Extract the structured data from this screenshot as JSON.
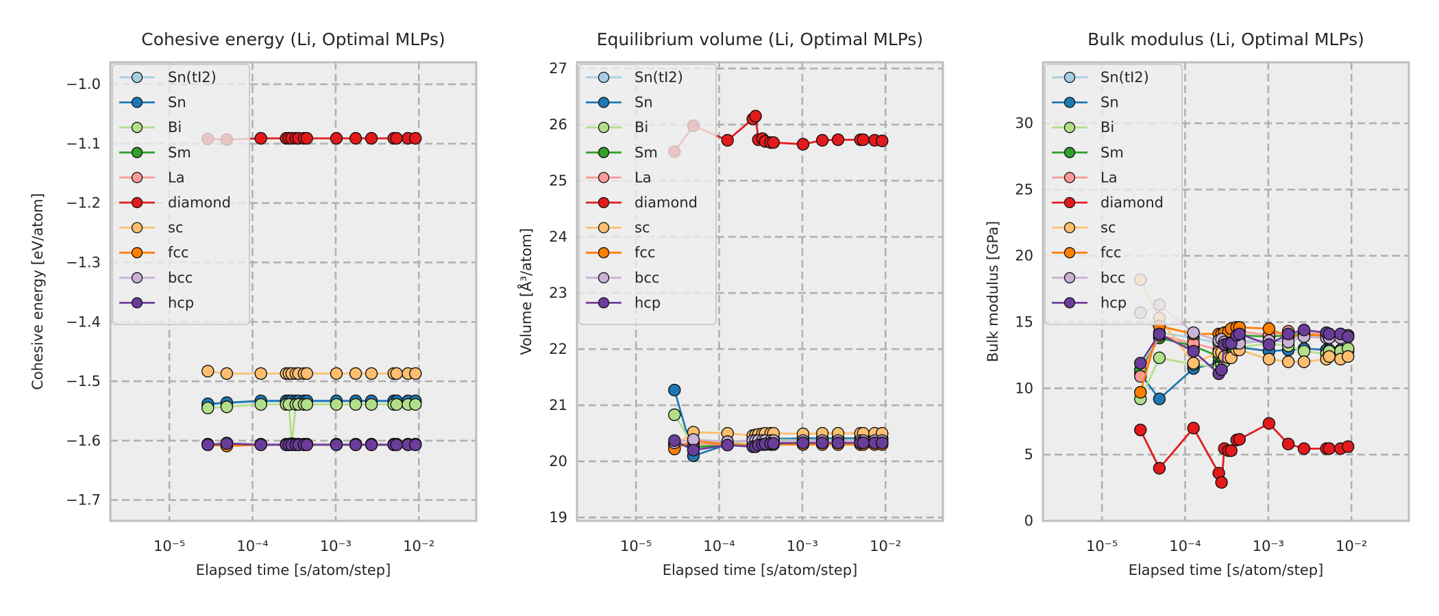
{
  "figure": {
    "background": "#ffffff",
    "axes_facecolor": "#ededed",
    "spine_color": "#bdbdbd",
    "grid_color": "#b0b0b0"
  },
  "series_style": [
    {
      "name": "Sn(tI2)",
      "color": "#a6cee3",
      "alpha": 0.9
    },
    {
      "name": "Sn",
      "color": "#1f78b4",
      "alpha": 1
    },
    {
      "name": "Bi",
      "color": "#b2df8a",
      "alpha": 1
    },
    {
      "name": "Sm",
      "color": "#33a02c",
      "alpha": 1
    },
    {
      "name": "La",
      "color": "#fb9a99",
      "alpha": 1
    },
    {
      "name": "diamond",
      "color": "#e31a1c",
      "alpha": 1
    },
    {
      "name": "sc",
      "color": "#fdbf6f",
      "alpha": 1
    },
    {
      "name": "fcc",
      "color": "#ff7f00",
      "alpha": 1
    },
    {
      "name": "bcc",
      "color": "#cab2d6",
      "alpha": 1
    },
    {
      "name": "hcp",
      "color": "#6a3d9a",
      "alpha": 1
    }
  ],
  "chart_data": [
    {
      "type": "line",
      "title": "Cohesive energy (Li, Optimal MLPs)",
      "xlabel": "Elapsed time [s/atom/step]",
      "ylabel": "Cohesive energy [eV/atom]",
      "xscale": "log",
      "xlim": [
        1.95e-06,
        0.049
      ],
      "ylim": [
        -1.735,
        -0.963
      ],
      "xticks": [
        1e-05,
        0.0001,
        0.001,
        0.01
      ],
      "xticklabels": [
        "10⁻⁵",
        "10⁻⁴",
        "10⁻³",
        "10⁻²"
      ],
      "yticks": [
        -1.0,
        -1.1,
        -1.2,
        -1.3,
        -1.4,
        -1.5,
        -1.6,
        -1.7
      ],
      "yticklabels": [
        "−1.0",
        "−1.1",
        "−1.2",
        "−1.3",
        "−1.4",
        "−1.5",
        "−1.6",
        "−1.7"
      ],
      "grid": true,
      "legend": "upper-left",
      "x": [
        2.9e-05,
        4.9e-05,
        0.000126,
        0.000254,
        0.000274,
        0.000296,
        0.000332,
        0.000358,
        0.000417,
        0.00045,
        0.00102,
        0.00174,
        0.00269,
        0.005,
        0.0054,
        0.0074,
        0.0091
      ],
      "series": [
        {
          "name": "Sn(tI2)",
          "values": [
            -1.54,
            -1.537,
            -1.534,
            -1.534,
            -1.534,
            -1.534,
            -1.534,
            -1.534,
            -1.534,
            -1.534,
            -1.534,
            -1.534,
            -1.534,
            -1.534,
            -1.534,
            -1.534,
            -1.534
          ]
        },
        {
          "name": "Sn",
          "values": [
            -1.538,
            -1.536,
            -1.533,
            -1.533,
            -1.533,
            -1.533,
            -1.533,
            -1.533,
            -1.533,
            -1.533,
            -1.533,
            -1.533,
            -1.533,
            -1.533,
            -1.533,
            -1.533,
            -1.533
          ]
        },
        {
          "name": "Bi",
          "values": [
            -1.545,
            -1.543,
            -1.539,
            -1.539,
            -1.539,
            -1.605,
            -1.539,
            -1.539,
            -1.539,
            -1.539,
            -1.539,
            -1.539,
            -1.539,
            -1.539,
            -1.539,
            -1.539,
            -1.539
          ]
        },
        {
          "name": "Sm",
          "values": [
            -1.606,
            -1.605,
            -1.606,
            -1.606,
            -1.606,
            -1.606,
            -1.606,
            -1.606,
            -1.606,
            -1.606,
            -1.606,
            -1.606,
            -1.606,
            -1.606,
            -1.606,
            -1.606,
            -1.606
          ]
        },
        {
          "name": "La",
          "values": [
            -1.606,
            -1.606,
            -1.606,
            -1.606,
            -1.606,
            -1.606,
            -1.606,
            -1.606,
            -1.606,
            -1.606,
            -1.606,
            -1.606,
            -1.606,
            -1.606,
            -1.606,
            -1.606,
            -1.606
          ]
        },
        {
          "name": "diamond",
          "values": [
            -1.092,
            -1.093,
            -1.091,
            -1.091,
            -1.091,
            -1.091,
            -1.091,
            -1.091,
            -1.091,
            -1.091,
            -1.091,
            -1.091,
            -1.091,
            -1.091,
            -1.091,
            -1.091,
            -1.091
          ]
        },
        {
          "name": "sc",
          "values": [
            -1.483,
            -1.487,
            -1.487,
            -1.487,
            -1.487,
            -1.487,
            -1.487,
            -1.487,
            -1.487,
            -1.487,
            -1.487,
            -1.487,
            -1.487,
            -1.487,
            -1.487,
            -1.487,
            -1.487
          ]
        },
        {
          "name": "fcc",
          "values": [
            -1.607,
            -1.609,
            -1.607,
            -1.607,
            -1.607,
            -1.607,
            -1.607,
            -1.607,
            -1.607,
            -1.607,
            -1.607,
            -1.607,
            -1.607,
            -1.607,
            -1.607,
            -1.607,
            -1.607
          ]
        },
        {
          "name": "bcc",
          "values": [
            -1.606,
            -1.604,
            -1.606,
            -1.606,
            -1.606,
            -1.606,
            -1.606,
            -1.606,
            -1.606,
            -1.606,
            -1.606,
            -1.606,
            -1.606,
            -1.606,
            -1.606,
            -1.606,
            -1.606
          ]
        },
        {
          "name": "hcp",
          "values": [
            -1.607,
            -1.605,
            -1.607,
            -1.607,
            -1.607,
            -1.607,
            -1.607,
            -1.607,
            -1.607,
            -1.607,
            -1.607,
            -1.607,
            -1.607,
            -1.607,
            -1.607,
            -1.607,
            -1.607
          ]
        }
      ]
    },
    {
      "type": "line",
      "title": "Equilibrium volume (Li, Optimal MLPs)",
      "xlabel": "Elapsed time [s/atom/step]",
      "ylabel": "Volume [Å³/atom]",
      "xscale": "log",
      "xlim": [
        1.95e-06,
        0.049
      ],
      "ylim": [
        18.94,
        27.11
      ],
      "xticks": [
        1e-05,
        0.0001,
        0.001,
        0.01
      ],
      "xticklabels": [
        "10⁻⁵",
        "10⁻⁴",
        "10⁻³",
        "10⁻²"
      ],
      "yticks": [
        19,
        20,
        21,
        22,
        23,
        24,
        25,
        26,
        27
      ],
      "yticklabels": [
        "19",
        "20",
        "21",
        "22",
        "23",
        "24",
        "25",
        "26",
        "27"
      ],
      "grid": true,
      "legend": "upper-left",
      "x": [
        2.9e-05,
        4.9e-05,
        0.000126,
        0.000254,
        0.000274,
        0.000296,
        0.000332,
        0.000358,
        0.000417,
        0.00045,
        0.00102,
        0.00174,
        0.00269,
        0.005,
        0.0054,
        0.0074,
        0.0091
      ],
      "series": [
        {
          "name": "Sn(tI2)",
          "values": [
            20.33,
            20.25,
            20.35,
            20.38,
            20.38,
            20.4,
            20.4,
            20.4,
            20.4,
            20.4,
            20.4,
            20.4,
            20.4,
            20.4,
            20.4,
            20.4,
            20.4
          ]
        },
        {
          "name": "Sn",
          "values": [
            21.27,
            20.1,
            20.3,
            20.38,
            20.38,
            20.4,
            20.4,
            20.4,
            20.4,
            20.4,
            20.41,
            20.41,
            20.41,
            20.41,
            20.41,
            20.41,
            20.41
          ]
        },
        {
          "name": "Bi",
          "values": [
            20.83,
            20.28,
            20.3,
            20.38,
            20.38,
            20.38,
            20.38,
            20.38,
            20.38,
            20.38,
            20.38,
            20.38,
            20.38,
            20.38,
            20.38,
            20.38,
            20.38
          ]
        },
        {
          "name": "Sm",
          "values": [
            20.33,
            20.25,
            20.3,
            20.3,
            20.3,
            20.32,
            20.32,
            20.33,
            20.33,
            20.33,
            20.33,
            20.33,
            20.33,
            20.33,
            20.33,
            20.33,
            20.33
          ]
        },
        {
          "name": "La",
          "values": [
            20.3,
            20.32,
            20.3,
            20.3,
            20.3,
            20.32,
            20.32,
            20.32,
            20.32,
            20.32,
            20.32,
            20.32,
            20.32,
            20.32,
            20.32,
            20.32,
            20.32
          ]
        },
        {
          "name": "diamond",
          "values": [
            25.52,
            25.98,
            25.72,
            26.1,
            26.15,
            25.73,
            25.75,
            25.7,
            25.68,
            25.68,
            25.65,
            25.72,
            25.73,
            25.73,
            25.73,
            25.72,
            25.71
          ]
        },
        {
          "name": "sc",
          "values": [
            20.28,
            20.52,
            20.5,
            20.46,
            20.47,
            20.48,
            20.49,
            20.5,
            20.5,
            20.5,
            20.49,
            20.5,
            20.5,
            20.5,
            20.5,
            20.5,
            20.5
          ]
        },
        {
          "name": "fcc",
          "values": [
            20.22,
            20.37,
            20.3,
            20.29,
            20.29,
            20.3,
            20.3,
            20.3,
            20.3,
            20.3,
            20.3,
            20.3,
            20.3,
            20.3,
            20.3,
            20.3,
            20.3
          ]
        },
        {
          "name": "bcc",
          "values": [
            20.33,
            20.39,
            20.35,
            20.37,
            20.37,
            20.37,
            20.37,
            20.37,
            20.37,
            20.37,
            20.37,
            20.37,
            20.37,
            20.37,
            20.37,
            20.37,
            20.37
          ]
        },
        {
          "name": "hcp",
          "values": [
            20.37,
            20.2,
            20.29,
            20.26,
            20.26,
            20.29,
            20.3,
            20.31,
            20.32,
            20.32,
            20.33,
            20.33,
            20.33,
            20.33,
            20.33,
            20.33,
            20.33
          ]
        }
      ]
    },
    {
      "type": "line",
      "title": "Bulk modulus (Li, Optimal MLPs)",
      "xlabel": "Elapsed time [s/atom/step]",
      "ylabel": "Bulk modulus [GPa]",
      "xscale": "log",
      "xlim": [
        1.95e-06,
        0.049
      ],
      "ylim": [
        0,
        34.6
      ],
      "xticks": [
        1e-05,
        0.0001,
        0.001,
        0.01
      ],
      "xticklabels": [
        "10⁻⁵",
        "10⁻⁴",
        "10⁻³",
        "10⁻²"
      ],
      "yticks": [
        0,
        5,
        10,
        15,
        20,
        25,
        30
      ],
      "yticklabels": [
        "0",
        "5",
        "10",
        "15",
        "20",
        "25",
        "30"
      ],
      "grid": true,
      "legend": "upper-left",
      "x": [
        2.9e-05,
        4.9e-05,
        0.000126,
        0.000254,
        0.000274,
        0.000296,
        0.000332,
        0.000358,
        0.000417,
        0.00045,
        0.00102,
        0.00174,
        0.00269,
        0.005,
        0.0054,
        0.0074,
        0.0091
      ],
      "series": [
        {
          "name": "Sn(tI2)",
          "values": [
            15.7,
            14.2,
            13.8,
            13.4,
            13.4,
            13.5,
            13.5,
            13.5,
            13.6,
            13.6,
            13.6,
            13.8,
            13.9,
            13.9,
            13.9,
            13.9,
            13.9
          ]
        },
        {
          "name": "Sn",
          "values": [
            11.1,
            9.2,
            11.5,
            11.9,
            12.1,
            12.4,
            12.8,
            13.0,
            13.1,
            13.1,
            12.8,
            12.9,
            13.0,
            12.9,
            12.9,
            12.9,
            12.8
          ]
        },
        {
          "name": "Bi",
          "values": [
            9.2,
            12.3,
            11.8,
            11.6,
            11.8,
            12.0,
            12.3,
            12.8,
            13.0,
            13.1,
            13.4,
            13.2,
            12.8,
            12.6,
            12.8,
            12.8,
            13.0
          ]
        },
        {
          "name": "Sm",
          "values": [
            11.4,
            13.8,
            13.2,
            12.4,
            12.4,
            12.6,
            13.0,
            13.6,
            14.0,
            14.0,
            13.9,
            14.0,
            14.1,
            14.1,
            14.1,
            14.1,
            14.0
          ]
        },
        {
          "name": "La",
          "values": [
            10.9,
            14.0,
            13.4,
            12.9,
            13.0,
            13.2,
            13.4,
            13.8,
            14.3,
            14.3,
            14.0,
            14.3,
            14.2,
            14.1,
            14.1,
            14.0,
            13.9
          ]
        },
        {
          "name": "diamond",
          "values": [
            6.86,
            3.97,
            7.0,
            3.6,
            2.9,
            5.45,
            5.3,
            5.3,
            6.1,
            6.15,
            7.35,
            5.8,
            5.45,
            5.45,
            5.45,
            5.45,
            5.6
          ]
        },
        {
          "name": "sc",
          "values": [
            18.2,
            15.3,
            11.9,
            12.7,
            12.7,
            12.4,
            12.3,
            12.3,
            12.9,
            12.9,
            12.2,
            12.0,
            12.0,
            12.2,
            12.4,
            12.2,
            12.4
          ]
        },
        {
          "name": "fcc",
          "values": [
            9.7,
            14.7,
            14.1,
            14.1,
            14.1,
            14.2,
            14.3,
            14.5,
            14.6,
            14.6,
            14.5,
            13.9,
            14.0,
            14.0,
            14.0,
            14.0,
            13.9
          ]
        },
        {
          "name": "bcc",
          "values": [
            15.7,
            16.3,
            14.2,
            13.6,
            13.7,
            13.5,
            13.4,
            13.4,
            13.4,
            13.4,
            13.6,
            13.5,
            13.9,
            13.8,
            13.8,
            13.8,
            14.0
          ]
        },
        {
          "name": "hcp",
          "values": [
            11.9,
            14.1,
            12.8,
            11.1,
            11.4,
            13.3,
            13.4,
            13.4,
            14.0,
            14.1,
            13.3,
            14.1,
            14.4,
            14.2,
            14.1,
            14.1,
            13.9
          ]
        }
      ]
    }
  ]
}
